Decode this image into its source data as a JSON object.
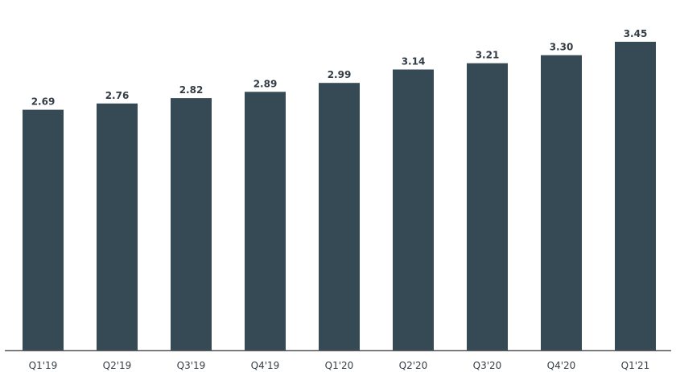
{
  "chart_data": {
    "type": "bar",
    "title": "",
    "xlabel": "",
    "ylabel": "",
    "categories": [
      "Q1'19",
      "Q2'19",
      "Q3'19",
      "Q4'19",
      "Q1'20",
      "Q2'20",
      "Q3'20",
      "Q4'20",
      "Q1'21"
    ],
    "values": [
      2.69,
      2.76,
      2.82,
      2.89,
      2.99,
      3.14,
      3.21,
      3.3,
      3.45
    ],
    "value_labels": [
      "2.69",
      "2.76",
      "2.82",
      "2.89",
      "2.99",
      "3.14",
      "3.21",
      "3.30",
      "3.45"
    ],
    "ylim": [
      0,
      3.45
    ],
    "grid": false,
    "legend": "none",
    "colors": {
      "bar": "#364a55",
      "axis": "#5a5a5a",
      "text": "#343d46"
    }
  }
}
